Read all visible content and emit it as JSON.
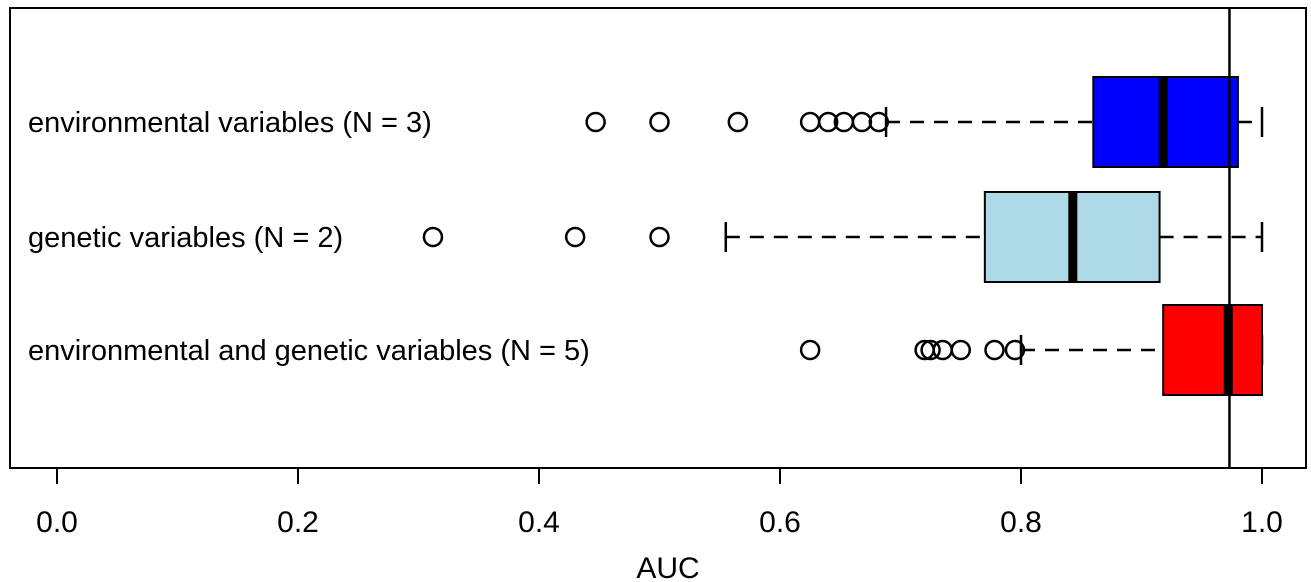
{
  "chart_data": {
    "type": "boxplot",
    "orientation": "horizontal",
    "xlabel": "AUC",
    "xlim": [
      0.0,
      1.0
    ],
    "xticks": [
      "0.0",
      "0.2",
      "0.4",
      "0.6",
      "0.8",
      "1.0"
    ],
    "reference_line": 0.973,
    "grid": false,
    "series": [
      {
        "label": "environmental variables (N = 3)",
        "color": "#0000ff",
        "whisker_low": 0.688,
        "q1": 0.86,
        "median": 0.918,
        "q3": 0.98,
        "whisker_high": 1.0,
        "outliers": [
          0.447,
          0.5,
          0.565,
          0.625,
          0.64,
          0.653,
          0.668,
          0.682
        ]
      },
      {
        "label": "genetic variables (N = 2)",
        "color": "#add8e6",
        "whisker_low": 0.555,
        "q1": 0.77,
        "median": 0.843,
        "q3": 0.915,
        "whisker_high": 1.0,
        "outliers": [
          0.312,
          0.43,
          0.5
        ]
      },
      {
        "label": "environmental and genetic variables (N = 5)",
        "color": "#ff0000",
        "whisker_low": 0.8,
        "q1": 0.918,
        "median": 0.972,
        "q3": 1.0,
        "whisker_high": 1.0,
        "outliers": [
          0.625,
          0.72,
          0.725,
          0.735,
          0.75,
          0.778,
          0.795
        ]
      }
    ]
  }
}
